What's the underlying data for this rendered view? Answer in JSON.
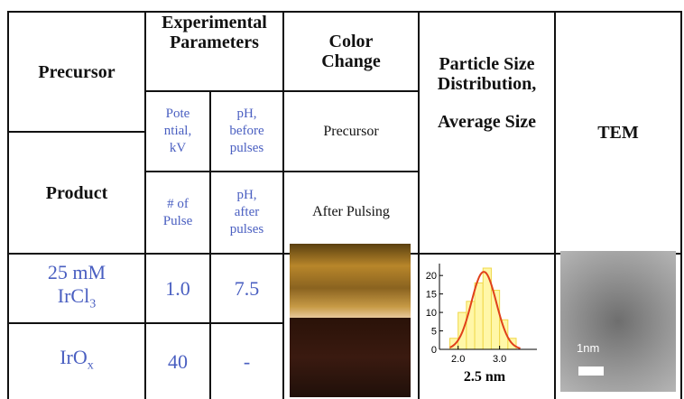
{
  "header": {
    "precursor": "Precursor",
    "product": "Product",
    "experimental_parameters": [
      "Experimental",
      "Parameters"
    ],
    "color_change": [
      "Color",
      "Change"
    ],
    "particle_size": [
      "Particle Size",
      "Distribution,"
    ],
    "average_size": "Average Size",
    "tem": "TEM"
  },
  "subheader": {
    "potential": [
      "Pote",
      "ntial,",
      "kV"
    ],
    "ph_before": [
      "pH,",
      "before",
      "pulses"
    ],
    "color_precursor": "Precursor",
    "pulses": [
      "# of",
      "Pulse"
    ],
    "ph_after": [
      "pH,",
      "after",
      "pulses"
    ],
    "color_after": "After Pulsing"
  },
  "rows": [
    {
      "name": [
        "25 mM",
        "IrCl",
        "3"
      ],
      "value_1": "1.0",
      "value_2": "7.5"
    },
    {
      "name": [
        "IrO",
        "x"
      ],
      "value_1": "40",
      "value_2": "-"
    }
  ],
  "histogram": {
    "bins": [
      1.8,
      2.0,
      2.2,
      2.4,
      2.6,
      2.8,
      3.0,
      3.2,
      3.4
    ],
    "counts": [
      3,
      10,
      13,
      18,
      22,
      16,
      8,
      3
    ],
    "xlim": [
      1.55,
      3.9
    ],
    "ylim": [
      0,
      22
    ],
    "yticks": [
      0,
      5,
      10,
      15,
      20
    ],
    "xticks": [
      {
        "value": 2,
        "label": "2.0"
      },
      {
        "value": 3,
        "label": "3.0"
      }
    ],
    "label": "2.5 nm"
  },
  "tem": {
    "scale_label": "1nm"
  }
}
